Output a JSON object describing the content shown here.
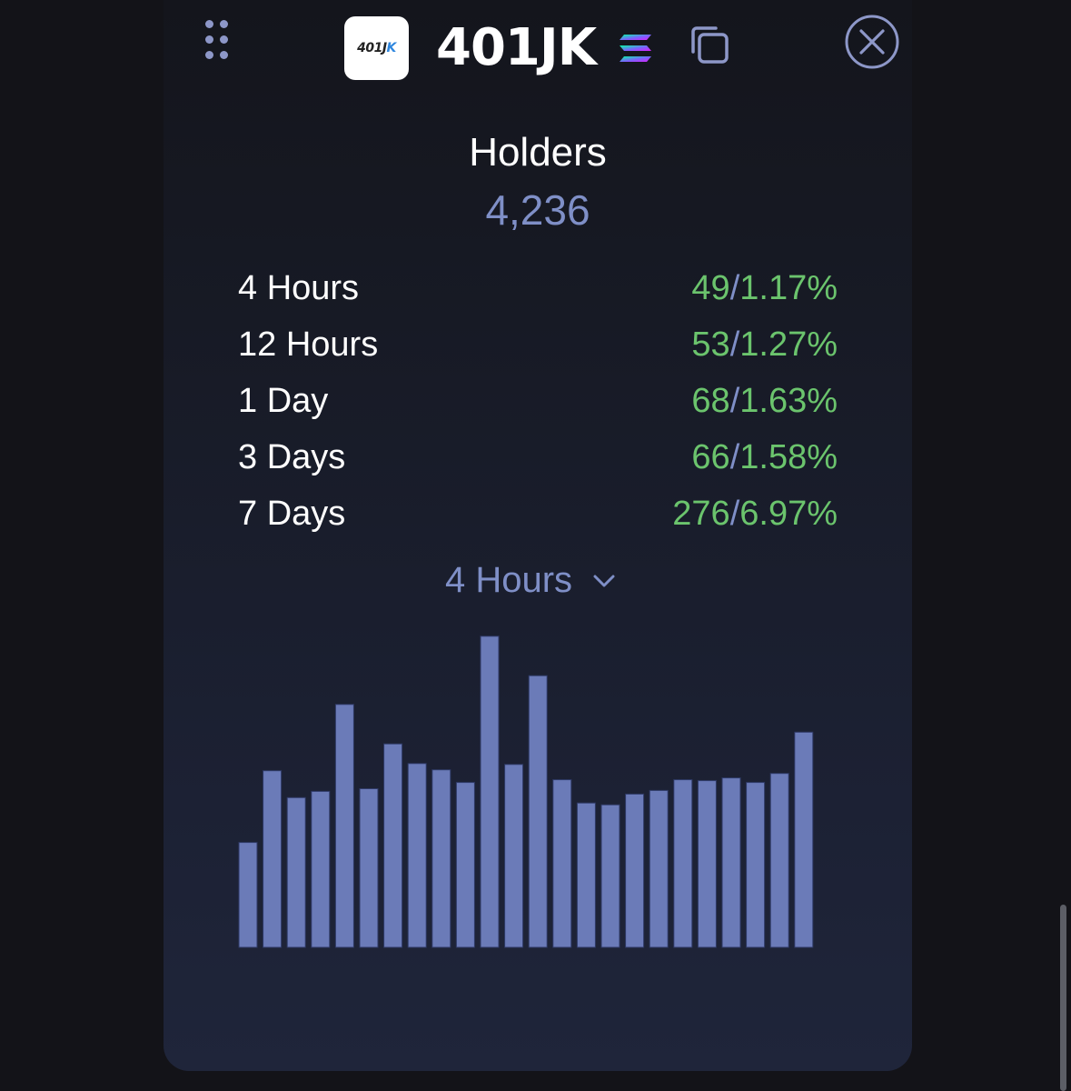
{
  "header": {
    "logo_text": "401JK",
    "token_name": "401JK",
    "chain_icon": "solana-logo-icon",
    "copy_icon": "copy-icon",
    "close_icon": "close-circle-icon",
    "drag_icon": "drag-handle-icon"
  },
  "holders": {
    "title": "Holders",
    "total": "4,236"
  },
  "stats": [
    {
      "label": "4 Hours",
      "count": "49",
      "pct": "1.17%"
    },
    {
      "label": "12 Hours",
      "count": "53",
      "pct": "1.27%"
    },
    {
      "label": "1 Day",
      "count": "68",
      "pct": "1.63%"
    },
    {
      "label": "3 Days",
      "count": "66",
      "pct": "1.58%"
    },
    {
      "label": "7 Days",
      "count": "276",
      "pct": "6.97%"
    }
  ],
  "period_select": {
    "value": "4 Hours",
    "icon": "chevron-down-icon"
  },
  "colors": {
    "background": "#131318",
    "accent": "#7f8fc7",
    "positive": "#6bc46d",
    "bar": "#6b7bb8",
    "bar_stroke": "#2f3a66"
  },
  "chart_data": {
    "type": "bar",
    "title": "",
    "xlabel": "",
    "ylabel": "",
    "grid": false,
    "values": [
      117,
      197,
      167,
      174,
      271,
      177,
      227,
      205,
      198,
      184,
      347,
      204,
      303,
      187,
      161,
      159,
      171,
      175,
      187,
      186,
      189,
      184,
      194,
      240
    ],
    "ylim": [
      0,
      360
    ]
  }
}
